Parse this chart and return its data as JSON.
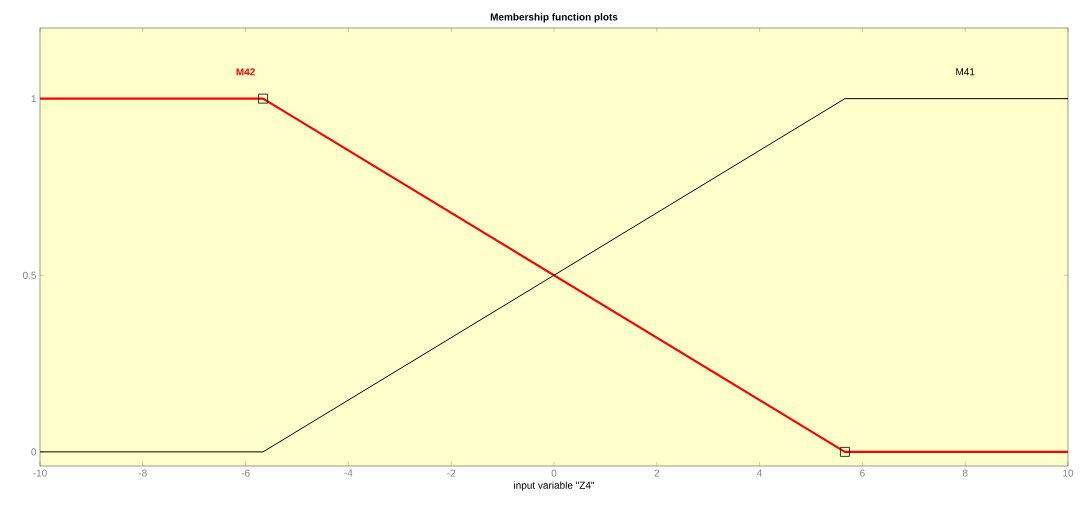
{
  "chart_data": {
    "type": "line",
    "title": "Membership function plots",
    "xlabel": "input variable \"Z4\"",
    "xlim": [
      -10,
      10
    ],
    "ylim": [
      -0.04,
      1.2
    ],
    "xticks": [
      -10,
      -8,
      -6,
      -4,
      -2,
      0,
      2,
      4,
      6,
      8,
      10
    ],
    "yticks": [
      0,
      0.5,
      1
    ],
    "grid": false,
    "series": [
      {
        "name": "M42",
        "color": "#ff0000",
        "x": [
          -10,
          -5.66,
          5.66,
          10
        ],
        "values": [
          1,
          1,
          0,
          0
        ]
      },
      {
        "name": "M41",
        "color": "#000000",
        "x": [
          -10,
          -5.66,
          5.66,
          10
        ],
        "values": [
          0,
          0,
          1,
          1
        ]
      },
      {
        "type": "scatter",
        "marker": "square",
        "color": "#000000",
        "x": [
          -5.66,
          5.66
        ],
        "values": [
          1,
          0
        ]
      }
    ]
  }
}
